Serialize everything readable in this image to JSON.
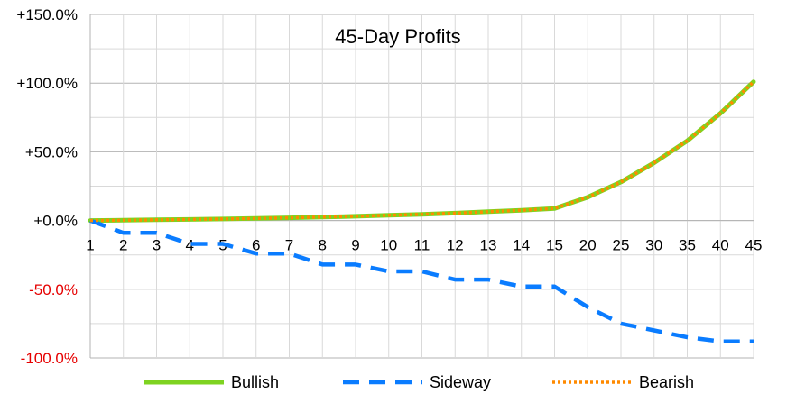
{
  "chart_data": {
    "type": "line",
    "title": "45-Day Profits",
    "categories": [
      "1",
      "2",
      "3",
      "4",
      "5",
      "6",
      "7",
      "8",
      "9",
      "10",
      "11",
      "12",
      "13",
      "14",
      "15",
      "20",
      "25",
      "30",
      "35",
      "40",
      "45"
    ],
    "y_ticks": [
      "+150.0%",
      "+100.0%",
      "+50.0%",
      "+0.0%",
      "-50.0%",
      "-100.0%"
    ],
    "ylim": [
      -100,
      150
    ],
    "grid": true,
    "legend_position": "bottom",
    "negative_tick_color": "#e60000",
    "series": [
      {
        "name": "Bullish",
        "color": "#7ed321",
        "style": "solid",
        "values": [
          0,
          0.2,
          0.5,
          0.8,
          1.1,
          1.5,
          2.0,
          2.5,
          3.1,
          3.8,
          4.5,
          5.4,
          6.4,
          7.5,
          8.8,
          17,
          28,
          42,
          58,
          78,
          101
        ]
      },
      {
        "name": "Sideway",
        "color": "#0a7cff",
        "style": "dashed",
        "values": [
          0,
          -9,
          -9,
          -17,
          -17,
          -24,
          -24,
          -32,
          -32,
          -37,
          -37,
          -43,
          -43,
          -48,
          -48,
          -63,
          -75,
          -80,
          -85,
          -88,
          -88
        ]
      },
      {
        "name": "Bearish",
        "color": "#ff8a00",
        "style": "dotted",
        "values": [
          0,
          0.2,
          0.5,
          0.8,
          1.1,
          1.5,
          2.0,
          2.5,
          3.1,
          3.8,
          4.5,
          5.4,
          6.4,
          7.5,
          8.8,
          17,
          28,
          42,
          58,
          78,
          101
        ]
      }
    ]
  }
}
